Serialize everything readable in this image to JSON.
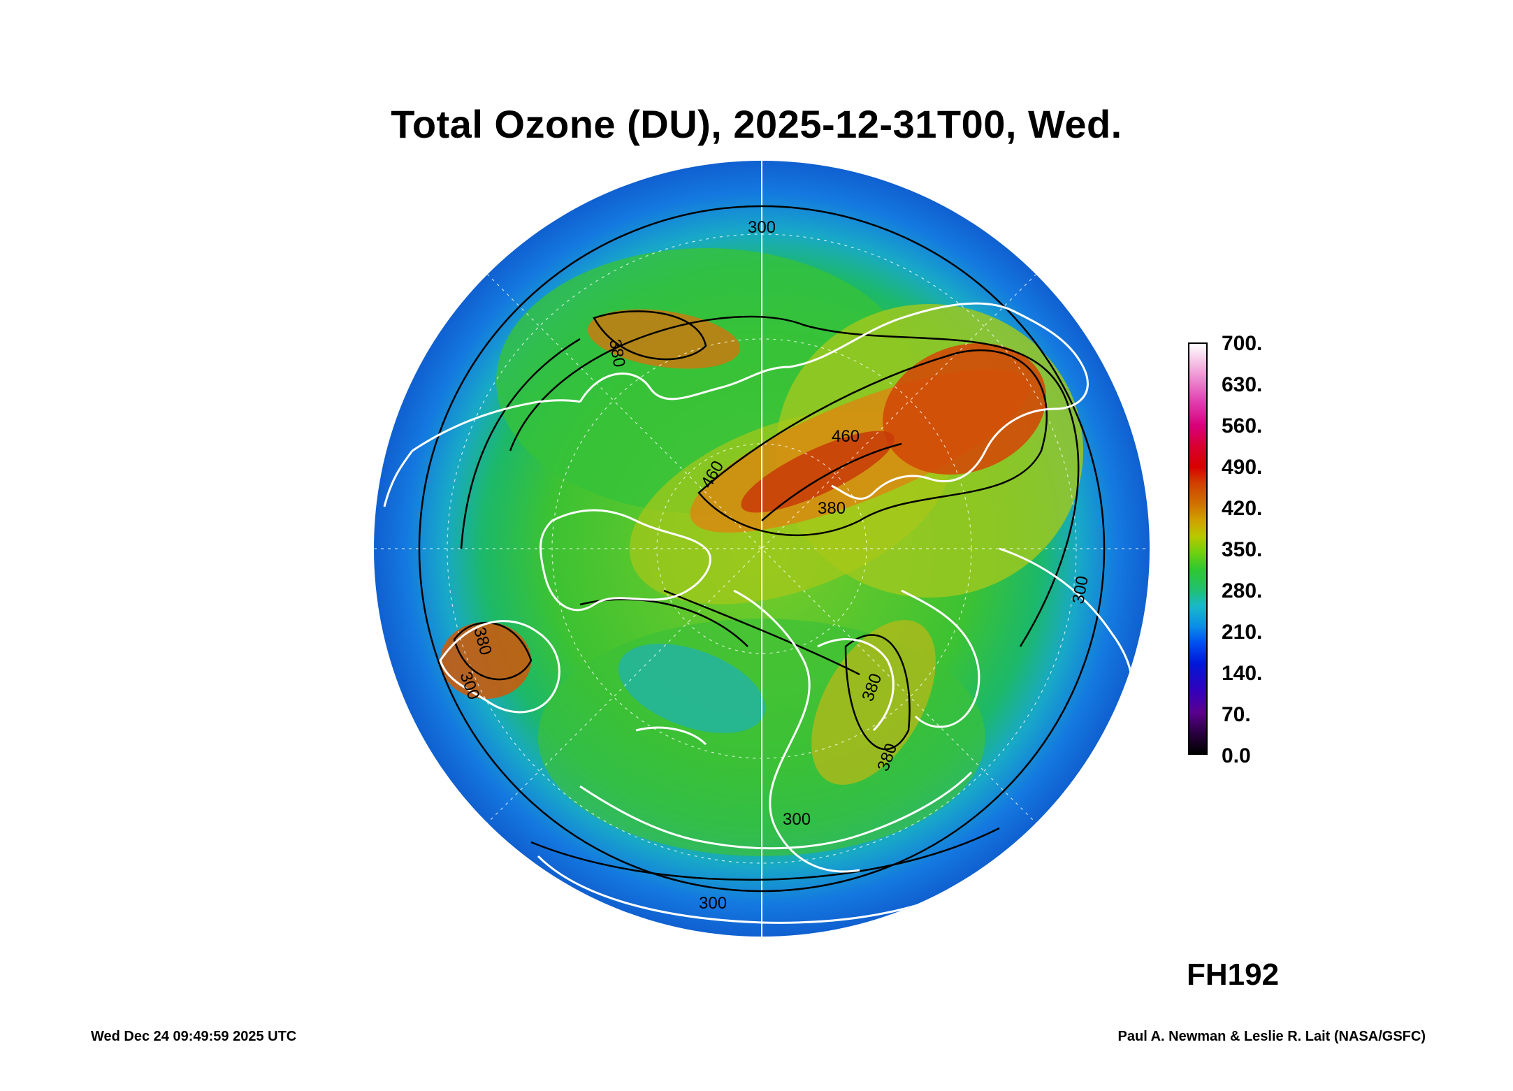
{
  "title": "Total Ozone (DU), 2025-12-31T00, Wed.",
  "colorbar": {
    "labels": [
      "700.",
      "630.",
      "560.",
      "490.",
      "420.",
      "350.",
      "280.",
      "210.",
      "140.",
      "70.",
      "0.0"
    ],
    "min": 0,
    "max": 700
  },
  "contour_labels": [
    "300",
    "380",
    "460",
    "460",
    "380",
    "300",
    "300",
    "380",
    "380",
    "300",
    "300",
    "380"
  ],
  "forecast_hour": "FH192",
  "footer": {
    "timestamp": "Wed Dec 24 09:49:59 2025 UTC",
    "credit": "Paul A. Newman & Leslie R. Lait (NASA/GSFC)"
  },
  "colors": {
    "low_ozone": "#1060d0",
    "mid_ozone": "#30c040",
    "high_ozone": "#d04010",
    "coastline": "#ffffff",
    "contour": "#000000"
  }
}
